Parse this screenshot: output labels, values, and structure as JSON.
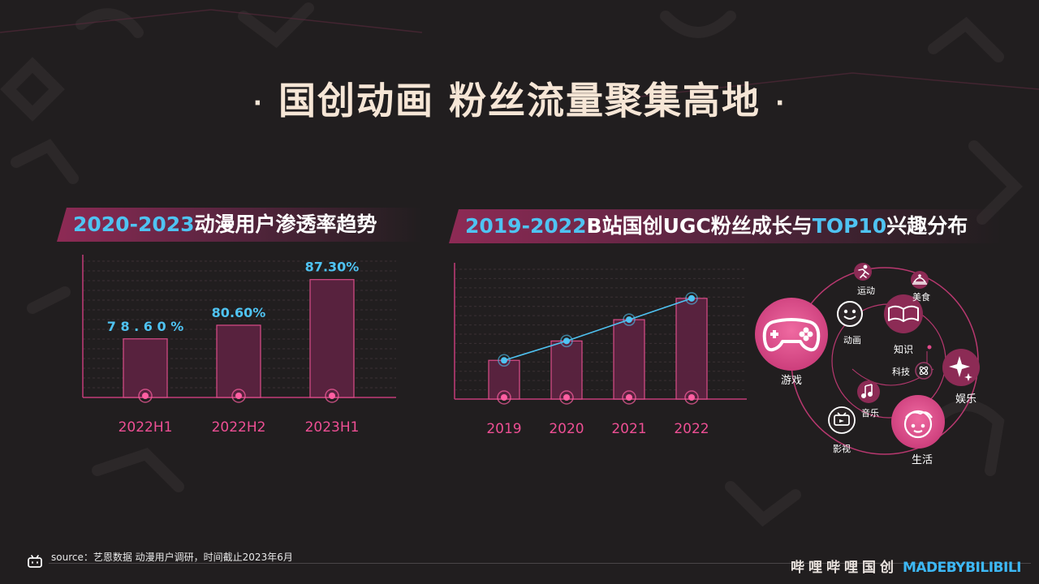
{
  "title": {
    "main": "国创动画 粉丝流量聚集高地",
    "dot": "·"
  },
  "section_left": {
    "title_hl": "2020-2023",
    "title_rest": "动漫用户渗透率趋势"
  },
  "section_right": {
    "title_hl1": "2019-2022",
    "title_mid": "B站国创UGC粉丝成长与",
    "title_hl2": "TOP10",
    "title_rest": "兴趣分布"
  },
  "chart_data": [
    {
      "type": "bar",
      "title": "2020-2023动漫用户渗透率趋势",
      "categories": [
        "2022H1",
        "2022H2",
        "2023H1"
      ],
      "values": [
        78.6,
        80.6,
        87.3
      ],
      "data_labels": [
        "7 8 . 6 0 %",
        "80.60%",
        "87.30%"
      ],
      "ylim": [
        70,
        90
      ],
      "grid": true,
      "colors": {
        "bar_fill": "#5b2340",
        "bar_stroke": "#e44f8f",
        "label": "#4fc3f2",
        "tick": "#ee4f94"
      }
    },
    {
      "type": "bar",
      "title": "2019-2022B站国创UGC粉丝成长",
      "categories": [
        "2019",
        "2020",
        "2021",
        "2022"
      ],
      "values": [
        1.0,
        1.5,
        2.05,
        2.6
      ],
      "ylim": [
        0,
        3.35
      ],
      "overlay": "line",
      "grid": true,
      "colors": {
        "bar_fill": "#5b2340",
        "bar_stroke": "#e44f8f",
        "line": "#4fc3f2",
        "tick": "#ee4f94"
      }
    }
  ],
  "interests": {
    "title": "TOP10兴趣分布",
    "items": [
      {
        "label": "游戏",
        "icon": "gamepad-icon"
      },
      {
        "label": "动画",
        "icon": "smiley-icon"
      },
      {
        "label": "运动",
        "icon": "runner-icon"
      },
      {
        "label": "知识",
        "icon": "book-icon"
      },
      {
        "label": "美食",
        "icon": "cloche-icon"
      },
      {
        "label": "科技",
        "icon": "atom-icon"
      },
      {
        "label": "娱乐",
        "icon": "sparkle-icon"
      },
      {
        "label": "音乐",
        "icon": "music-note-icon"
      },
      {
        "label": "影视",
        "icon": "tv-icon"
      },
      {
        "label": "生活",
        "icon": "face-icon"
      }
    ]
  },
  "footer": {
    "source": "source：艺恩数据 动漫用户调研，时间截止2023年6月",
    "brand_cn": "哔哩哔哩国创",
    "brand_en": "MADEBYBILIBILI"
  },
  "colors": {
    "background": "#211e1f",
    "accent_pink": "#e0498a",
    "accent_blue": "#4fc3f2",
    "title": "#f6e6d6"
  }
}
